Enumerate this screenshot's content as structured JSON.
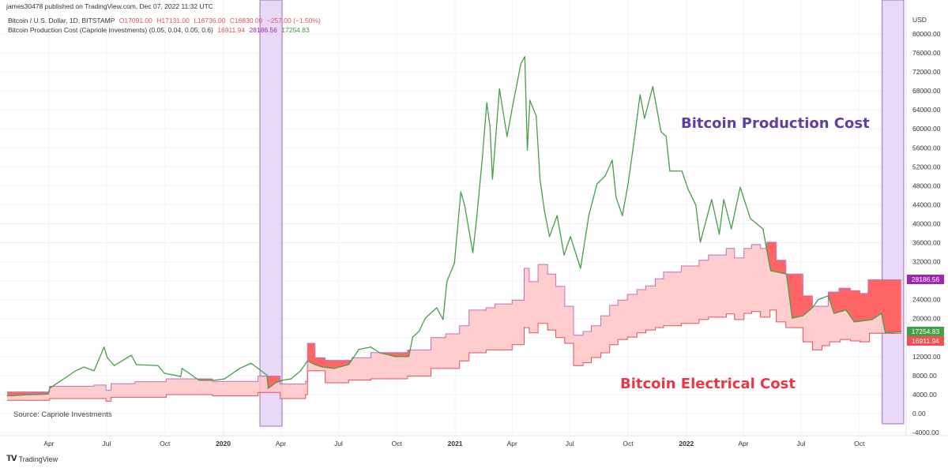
{
  "header": {
    "publisher": "james30478 published on TradingView.com, Dec 07, 2022 11:32 UTC",
    "symbol_line": {
      "name": "Bitcoin / U.S. Dollar, 1D, BITSTAMP",
      "open": "O17091.00",
      "high": "H17131.00",
      "low": "L16736.00",
      "close": "C16830.00",
      "change": "−257.00 (−1.50%)"
    },
    "indicator_line": {
      "name": "Bitcoin Production Cost (Capriole Investments) (0.05, 0.04, 0.05, 0.6)",
      "v1": "16911.94",
      "v2": "28186.56",
      "v3": "17254.83"
    }
  },
  "annotations": {
    "production": "Bitcoin Production Cost",
    "electrical": "Bitcoin Electrical Cost",
    "source": "Source: Capriole Investments"
  },
  "price_labels": {
    "production": "28186.56",
    "price": "17254.83",
    "electrical": "16911.94"
  },
  "footer": {
    "brand": "TradingView",
    "logo": "TV"
  },
  "colors": {
    "price": "#43a047",
    "production_line": "#c070c0",
    "electrical_line": "#e0505a",
    "band_fill": "#ffc4c4",
    "below_cost_fill": "#ff5a5a",
    "highlight": "#d9b8f0",
    "production_label": "#9c27b0",
    "price_label": "#43a047",
    "electrical_label": "#f05050",
    "production_text": "#5e3fa3",
    "electrical_text": "#e53945"
  },
  "chart_data": {
    "type": "line",
    "yaxis_unit": "USD",
    "ylim": [
      -4000,
      80000
    ],
    "yticks": [
      80000,
      76000,
      72000,
      68000,
      64000,
      60000,
      56000,
      52000,
      48000,
      44000,
      40000,
      36000,
      32000,
      28000,
      24000,
      20000,
      16000,
      12000,
      8000,
      4000,
      0,
      -4000
    ],
    "ytick_labels": [
      "80000.00",
      "76000.00",
      "72000.00",
      "68000.00",
      "64000.00",
      "60000.00",
      "56000.00",
      "52000.00",
      "48000.00",
      "44000.00",
      "40000.00",
      "36000.00",
      "32000.00",
      "28000.00",
      "24000.00",
      "20000.00",
      "16000.00",
      "12000.00",
      "8000.00",
      "4000.00",
      "0.00",
      "-4000.00"
    ],
    "xlim": [
      "2019-01-22",
      "2022-12-21"
    ],
    "xticks": [
      {
        "date": "2019-04-01",
        "label": "Apr"
      },
      {
        "date": "2019-07-01",
        "label": "Jul"
      },
      {
        "date": "2019-10-01",
        "label": "Oct"
      },
      {
        "date": "2020-01-01",
        "label": "2020",
        "bold": true
      },
      {
        "date": "2020-04-01",
        "label": "Apr"
      },
      {
        "date": "2020-07-01",
        "label": "Jul"
      },
      {
        "date": "2020-10-01",
        "label": "Oct"
      },
      {
        "date": "2021-01-01",
        "label": "2021",
        "bold": true
      },
      {
        "date": "2021-04-01",
        "label": "Apr"
      },
      {
        "date": "2021-07-01",
        "label": "Jul"
      },
      {
        "date": "2021-10-01",
        "label": "Oct"
      },
      {
        "date": "2022-01-01",
        "label": "2022",
        "bold": true
      },
      {
        "date": "2022-04-01",
        "label": "Apr"
      },
      {
        "date": "2022-07-01",
        "label": "Jul"
      },
      {
        "date": "2022-10-01",
        "label": "Oct"
      }
    ],
    "grid": true,
    "highlights": [
      [
        "2020-02-28",
        "2020-04-03"
      ],
      [
        "2022-11-06",
        "2022-12-10"
      ]
    ],
    "series": [
      {
        "name": "Bitcoin / U.S. Dollar",
        "kind": "line",
        "points": [
          [
            "2019-01-25",
            3700
          ],
          [
            "2019-02-20",
            3900
          ],
          [
            "2019-03-31",
            4100
          ],
          [
            "2019-04-02",
            5300
          ],
          [
            "2019-05-13",
            9000
          ],
          [
            "2019-05-26",
            9800
          ],
          [
            "2019-06-11",
            9000
          ],
          [
            "2019-06-27",
            14000
          ],
          [
            "2019-07-02",
            11800
          ],
          [
            "2019-07-13",
            10100
          ],
          [
            "2019-08-09",
            12300
          ],
          [
            "2019-08-17",
            10300
          ],
          [
            "2019-09-20",
            10100
          ],
          [
            "2019-09-30",
            8500
          ],
          [
            "2019-10-26",
            7800
          ],
          [
            "2019-10-28",
            9500
          ],
          [
            "2019-11-24",
            7000
          ],
          [
            "2019-12-17",
            7000
          ],
          [
            "2020-01-03",
            7300
          ],
          [
            "2020-01-27",
            9500
          ],
          [
            "2020-02-14",
            10600
          ],
          [
            "2020-02-25",
            9500
          ],
          [
            "2020-03-10",
            8100
          ],
          [
            "2020-03-12",
            5300
          ],
          [
            "2020-03-24",
            6500
          ],
          [
            "2020-04-03",
            7000
          ],
          [
            "2020-04-17",
            7300
          ],
          [
            "2020-05-02",
            9000
          ],
          [
            "2020-05-13",
            11100
          ],
          [
            "2020-05-25",
            10300
          ],
          [
            "2020-06-05",
            9800
          ],
          [
            "2020-06-24",
            9500
          ],
          [
            "2020-07-17",
            10300
          ],
          [
            "2020-08-02",
            13500
          ],
          [
            "2020-08-21",
            14000
          ],
          [
            "2020-09-04",
            12800
          ],
          [
            "2020-09-29",
            12000
          ],
          [
            "2020-10-20",
            12000
          ],
          [
            "2020-10-26",
            16100
          ],
          [
            "2020-11-05",
            17300
          ],
          [
            "2020-11-15",
            20100
          ],
          [
            "2020-12-03",
            22300
          ],
          [
            "2020-12-13",
            19800
          ],
          [
            "2020-12-19",
            27800
          ],
          [
            "2020-12-31",
            31750
          ],
          [
            "2021-01-10",
            46700
          ],
          [
            "2021-01-16",
            43900
          ],
          [
            "2021-01-29",
            33900
          ],
          [
            "2021-02-04",
            41100
          ],
          [
            "2021-02-13",
            53900
          ],
          [
            "2021-02-20",
            65500
          ],
          [
            "2021-02-25",
            60500
          ],
          [
            "2021-03-01",
            49400
          ],
          [
            "2021-03-12",
            68400
          ],
          [
            "2021-03-24",
            58400
          ],
          [
            "2021-04-02",
            65000
          ],
          [
            "2021-04-15",
            73800
          ],
          [
            "2021-04-21",
            75200
          ],
          [
            "2021-04-25",
            55500
          ],
          [
            "2021-04-29",
            66000
          ],
          [
            "2021-05-09",
            62700
          ],
          [
            "2021-05-15",
            49400
          ],
          [
            "2021-05-22",
            42700
          ],
          [
            "2021-05-30",
            37300
          ],
          [
            "2021-06-11",
            41700
          ],
          [
            "2021-06-22",
            33400
          ],
          [
            "2021-07-02",
            37300
          ],
          [
            "2021-07-18",
            30600
          ],
          [
            "2021-07-31",
            41700
          ],
          [
            "2021-08-13",
            48400
          ],
          [
            "2021-08-26",
            50100
          ],
          [
            "2021-09-06",
            53400
          ],
          [
            "2021-09-12",
            45600
          ],
          [
            "2021-09-22",
            41700
          ],
          [
            "2021-10-01",
            48400
          ],
          [
            "2021-10-09",
            56000
          ],
          [
            "2021-10-20",
            67200
          ],
          [
            "2021-10-27",
            62200
          ],
          [
            "2021-11-09",
            68900
          ],
          [
            "2021-11-22",
            59400
          ],
          [
            "2021-11-30",
            58400
          ],
          [
            "2021-12-06",
            51100
          ],
          [
            "2021-12-25",
            51100
          ],
          [
            "2022-01-04",
            47200
          ],
          [
            "2022-01-16",
            43900
          ],
          [
            "2022-01-23",
            36100
          ],
          [
            "2022-02-10",
            45100
          ],
          [
            "2022-02-22",
            37800
          ],
          [
            "2022-03-01",
            45100
          ],
          [
            "2022-03-13",
            38900
          ],
          [
            "2022-03-27",
            47700
          ],
          [
            "2022-04-12",
            41100
          ],
          [
            "2022-05-02",
            38900
          ],
          [
            "2022-05-07",
            35100
          ],
          [
            "2022-05-14",
            30100
          ],
          [
            "2022-05-25",
            29800
          ],
          [
            "2022-06-08",
            29400
          ],
          [
            "2022-06-17",
            20100
          ],
          [
            "2022-07-04",
            20600
          ],
          [
            "2022-07-19",
            22300
          ],
          [
            "2022-07-28",
            24000
          ],
          [
            "2022-08-13",
            24800
          ],
          [
            "2022-08-22",
            21100
          ],
          [
            "2022-09-10",
            21800
          ],
          [
            "2022-09-23",
            19300
          ],
          [
            "2022-10-21",
            19800
          ],
          [
            "2022-11-05",
            21100
          ],
          [
            "2022-11-11",
            17000
          ],
          [
            "2022-12-06",
            17254.83
          ]
        ]
      },
      {
        "name": "Bitcoin Production Cost",
        "kind": "step",
        "points": [
          [
            "2019-01-25",
            4550
          ],
          [
            "2019-04-02",
            5760
          ],
          [
            "2019-06-11",
            6000
          ],
          [
            "2019-06-30",
            4900
          ],
          [
            "2019-07-08",
            6300
          ],
          [
            "2019-08-15",
            6700
          ],
          [
            "2019-10-03",
            7320
          ],
          [
            "2019-12-15",
            6770
          ],
          [
            "2020-02-25",
            7870
          ],
          [
            "2020-03-31",
            6200
          ],
          [
            "2020-05-10",
            6800
          ],
          [
            "2020-05-13",
            14800
          ],
          [
            "2020-05-25",
            11750
          ],
          [
            "2020-06-10",
            11200
          ],
          [
            "2020-07-22",
            11750
          ],
          [
            "2020-08-21",
            12850
          ],
          [
            "2020-10-18",
            13400
          ],
          [
            "2020-11-24",
            16000
          ],
          [
            "2020-12-17",
            16800
          ],
          [
            "2021-01-08",
            18500
          ],
          [
            "2021-01-23",
            21800
          ],
          [
            "2021-02-19",
            22300
          ],
          [
            "2021-03-05",
            23100
          ],
          [
            "2021-04-01",
            23900
          ],
          [
            "2021-04-20",
            30600
          ],
          [
            "2021-04-28",
            27800
          ],
          [
            "2021-05-12",
            31400
          ],
          [
            "2021-05-27",
            29400
          ],
          [
            "2021-06-09",
            26800
          ],
          [
            "2021-06-23",
            22600
          ],
          [
            "2021-07-07",
            16500
          ],
          [
            "2021-07-22",
            17300
          ],
          [
            "2021-08-04",
            18500
          ],
          [
            "2021-08-19",
            20600
          ],
          [
            "2021-09-02",
            22800
          ],
          [
            "2021-09-15",
            23900
          ],
          [
            "2021-09-30",
            25100
          ],
          [
            "2021-10-15",
            26100
          ],
          [
            "2021-10-29",
            26900
          ],
          [
            "2021-11-13",
            28400
          ],
          [
            "2021-11-26",
            29800
          ],
          [
            "2021-12-24",
            31100
          ],
          [
            "2022-01-21",
            32300
          ],
          [
            "2022-02-05",
            33400
          ],
          [
            "2022-03-05",
            34800
          ],
          [
            "2022-03-18",
            32800
          ],
          [
            "2022-04-02",
            34800
          ],
          [
            "2022-04-14",
            35600
          ],
          [
            "2022-04-28",
            34800
          ],
          [
            "2022-05-08",
            36100
          ],
          [
            "2022-05-23",
            32300
          ],
          [
            "2022-06-07",
            29400
          ],
          [
            "2022-07-04",
            24800
          ],
          [
            "2022-07-19",
            22600
          ],
          [
            "2022-08-13",
            25600
          ],
          [
            "2022-08-30",
            26400
          ],
          [
            "2022-09-17",
            25900
          ],
          [
            "2022-10-02",
            25300
          ],
          [
            "2022-10-15",
            28186.56
          ],
          [
            "2022-12-06",
            28186.56
          ]
        ]
      },
      {
        "name": "Bitcoin Electrical Cost",
        "kind": "step",
        "points": [
          [
            "2019-01-25",
            2770
          ],
          [
            "2019-04-02",
            3150
          ],
          [
            "2019-06-30",
            2600
          ],
          [
            "2019-07-08",
            3430
          ],
          [
            "2019-10-03",
            3990
          ],
          [
            "2019-12-15",
            3710
          ],
          [
            "2020-02-25",
            4440
          ],
          [
            "2020-03-31",
            3150
          ],
          [
            "2020-05-10",
            3990
          ],
          [
            "2020-05-13",
            9000
          ],
          [
            "2020-06-10",
            6480
          ],
          [
            "2020-07-17",
            7040
          ],
          [
            "2020-08-21",
            7320
          ],
          [
            "2020-10-18",
            7870
          ],
          [
            "2020-11-24",
            9500
          ],
          [
            "2021-01-08",
            11100
          ],
          [
            "2021-01-23",
            12800
          ],
          [
            "2021-02-19",
            13400
          ],
          [
            "2021-04-01",
            14500
          ],
          [
            "2021-04-20",
            18100
          ],
          [
            "2021-04-28",
            17000
          ],
          [
            "2021-05-12",
            19000
          ],
          [
            "2021-05-27",
            17600
          ],
          [
            "2021-06-09",
            16000
          ],
          [
            "2021-06-23",
            14800
          ],
          [
            "2021-07-07",
            10100
          ],
          [
            "2021-07-22",
            10700
          ],
          [
            "2021-08-04",
            11800
          ],
          [
            "2021-08-19",
            12800
          ],
          [
            "2021-09-02",
            14500
          ],
          [
            "2021-09-15",
            15600
          ],
          [
            "2021-09-30",
            16100
          ],
          [
            "2021-10-15",
            17000
          ],
          [
            "2021-10-29",
            17600
          ],
          [
            "2021-11-13",
            18100
          ],
          [
            "2021-11-26",
            18500
          ],
          [
            "2021-12-24",
            19000
          ],
          [
            "2022-01-21",
            19800
          ],
          [
            "2022-02-05",
            20300
          ],
          [
            "2022-03-05",
            21000
          ],
          [
            "2022-03-18",
            19800
          ],
          [
            "2022-04-02",
            21100
          ],
          [
            "2022-04-14",
            21500
          ],
          [
            "2022-04-28",
            20300
          ],
          [
            "2022-05-13",
            21800
          ],
          [
            "2022-05-23",
            19300
          ],
          [
            "2022-06-07",
            18100
          ],
          [
            "2022-07-04",
            15100
          ],
          [
            "2022-07-19",
            13400
          ],
          [
            "2022-08-03",
            14300
          ],
          [
            "2022-08-15",
            15100
          ],
          [
            "2022-09-01",
            15600
          ],
          [
            "2022-09-17",
            15300
          ],
          [
            "2022-10-02",
            15100
          ],
          [
            "2022-10-17",
            16911.94
          ],
          [
            "2022-12-06",
            16911.94
          ]
        ]
      }
    ]
  }
}
